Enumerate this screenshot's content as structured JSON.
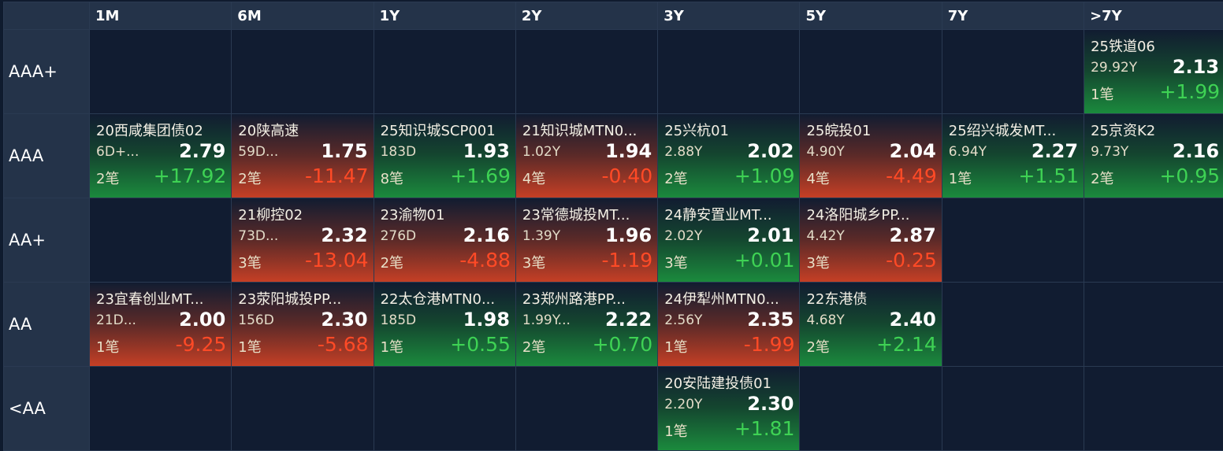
{
  "colors": {
    "background": "#0f1b2e",
    "header_bg": "#243349",
    "up_text": "#3ed254",
    "down_text": "#ff4a26",
    "up_fill": "#1b8a3d",
    "down_fill": "#c53f25"
  },
  "columns": [
    "1M",
    "6M",
    "1Y",
    "2Y",
    "3Y",
    "5Y",
    "7Y",
    ">7Y"
  ],
  "rows": [
    {
      "label": "AAA+",
      "cells": [
        null,
        null,
        null,
        null,
        null,
        null,
        null,
        {
          "name": "25铁道06",
          "term": "29.92Y",
          "rate": "2.13",
          "count": "1笔",
          "change": "+1.99",
          "dir": "up"
        }
      ]
    },
    {
      "label": "AAA",
      "cells": [
        {
          "name": "20西咸集团债02",
          "term": "6D+...",
          "rate": "2.79",
          "count": "2笔",
          "change": "+17.92",
          "dir": "up"
        },
        {
          "name": "20陕高速",
          "term": "59D...",
          "rate": "1.75",
          "count": "2笔",
          "change": "-11.47",
          "dir": "down"
        },
        {
          "name": "25知识城SCP001",
          "term": "183D",
          "rate": "1.93",
          "count": "8笔",
          "change": "+1.69",
          "dir": "up"
        },
        {
          "name": "21知识城MTN0...",
          "term": "1.02Y",
          "rate": "1.94",
          "count": "4笔",
          "change": "-0.40",
          "dir": "down"
        },
        {
          "name": "25兴杭01",
          "term": "2.88Y",
          "rate": "2.02",
          "count": "2笔",
          "change": "+1.09",
          "dir": "up"
        },
        {
          "name": "25皖投01",
          "term": "4.90Y",
          "rate": "2.04",
          "count": "4笔",
          "change": "-4.49",
          "dir": "down"
        },
        {
          "name": "25绍兴城发MT...",
          "term": "6.94Y",
          "rate": "2.27",
          "count": "1笔",
          "change": "+1.51",
          "dir": "up"
        },
        {
          "name": "25京资K2",
          "term": "9.73Y",
          "rate": "2.16",
          "count": "2笔",
          "change": "+0.95",
          "dir": "up"
        }
      ]
    },
    {
      "label": "AA+",
      "cells": [
        null,
        {
          "name": "21柳控02",
          "term": "73D...",
          "rate": "2.32",
          "count": "3笔",
          "change": "-13.04",
          "dir": "down"
        },
        {
          "name": "23渝物01",
          "term": "276D",
          "rate": "2.16",
          "count": "2笔",
          "change": "-4.88",
          "dir": "down"
        },
        {
          "name": "23常德城投MT...",
          "term": "1.39Y",
          "rate": "1.96",
          "count": "3笔",
          "change": "-1.19",
          "dir": "down"
        },
        {
          "name": "24静安置业MT...",
          "term": "2.02Y",
          "rate": "2.01",
          "count": "3笔",
          "change": "+0.01",
          "dir": "up"
        },
        {
          "name": "24洛阳城乡PP...",
          "term": "4.42Y",
          "rate": "2.87",
          "count": "3笔",
          "change": "-0.25",
          "dir": "down"
        },
        null,
        null
      ]
    },
    {
      "label": "AA",
      "cells": [
        {
          "name": "23宜春创业MT...",
          "term": "21D...",
          "rate": "2.00",
          "count": "1笔",
          "change": "-9.25",
          "dir": "down"
        },
        {
          "name": "23荥阳城投PP...",
          "term": "156D",
          "rate": "2.30",
          "count": "1笔",
          "change": "-5.68",
          "dir": "down"
        },
        {
          "name": "22太仓港MTN0...",
          "term": "185D",
          "rate": "1.98",
          "count": "1笔",
          "change": "+0.55",
          "dir": "up"
        },
        {
          "name": "23郑州路港PP...",
          "term": "1.99Y...",
          "rate": "2.22",
          "count": "2笔",
          "change": "+0.70",
          "dir": "up"
        },
        {
          "name": "24伊犁州MTN0...",
          "term": "2.56Y",
          "rate": "2.35",
          "count": "1笔",
          "change": "-1.99",
          "dir": "down"
        },
        {
          "name": "22东港债",
          "term": "4.68Y",
          "rate": "2.40",
          "count": "2笔",
          "change": "+2.14",
          "dir": "up"
        },
        null,
        null
      ]
    },
    {
      "label": "<AA",
      "cells": [
        null,
        null,
        null,
        null,
        {
          "name": "20安陆建投债01",
          "term": "2.20Y",
          "rate": "2.30",
          "count": "1笔",
          "change": "+1.81",
          "dir": "up"
        },
        null,
        null,
        null
      ]
    }
  ]
}
